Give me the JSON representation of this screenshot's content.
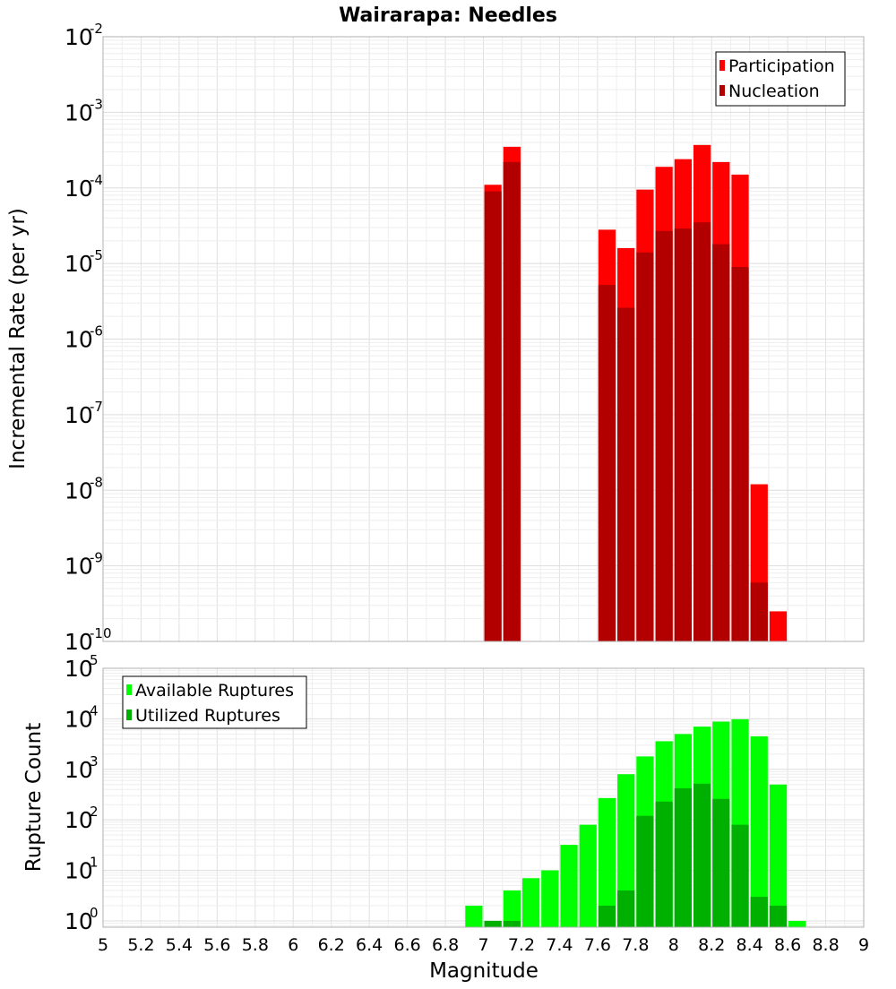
{
  "chart_data": {
    "title": "Wairarapa: Needles",
    "xlabel": "Magnitude",
    "xlim": [
      5,
      9
    ],
    "xticks": [
      "5",
      "5.2",
      "5.4",
      "5.6",
      "5.8",
      "6",
      "6.2",
      "6.4",
      "6.6",
      "6.8",
      "7",
      "7.2",
      "7.4",
      "7.6",
      "7.8",
      "8",
      "8.2",
      "8.4",
      "8.6",
      "8.8",
      "9"
    ],
    "bin_width": 0.1,
    "grid": true,
    "panels": [
      {
        "type": "bar",
        "ylabel": "Incremental Rate (per yr)",
        "yscale": "log",
        "ylim": [
          1e-10,
          0.01
        ],
        "legend_position": "top-right",
        "yticks": [
          {
            "base": "10",
            "exp": "-2"
          },
          {
            "base": "10",
            "exp": "-3"
          },
          {
            "base": "10",
            "exp": "-4"
          },
          {
            "base": "10",
            "exp": "-5"
          },
          {
            "base": "10",
            "exp": "-6"
          },
          {
            "base": "10",
            "exp": "-7"
          },
          {
            "base": "10",
            "exp": "-8"
          },
          {
            "base": "10",
            "exp": "-9"
          },
          {
            "base": "10",
            "exp": "-10"
          }
        ],
        "series": [
          {
            "name": "Participation",
            "color": "#ff0000",
            "x": [
              7.05,
              7.15,
              7.65,
              7.75,
              7.85,
              7.95,
              8.05,
              8.15,
              8.25,
              8.35,
              8.45,
              8.55
            ],
            "values": [
              0.00011,
              0.00035,
              2.8e-05,
              1.6e-05,
              9.5e-05,
              0.00019,
              0.00024,
              0.00037,
              0.00022,
              0.00015,
              1.2e-08,
              2.5e-10
            ]
          },
          {
            "name": "Nucleation",
            "color": "#b20000",
            "x": [
              7.05,
              7.15,
              7.65,
              7.75,
              7.85,
              7.95,
              8.05,
              8.15,
              8.25,
              8.35,
              8.45
            ],
            "values": [
              9e-05,
              0.00022,
              5.2e-06,
              2.6e-06,
              1.4e-05,
              2.7e-05,
              2.9e-05,
              3.5e-05,
              1.8e-05,
              9e-06,
              6e-10
            ]
          }
        ]
      },
      {
        "type": "bar",
        "ylabel": "Rupture Count",
        "yscale": "log",
        "ylim": [
          0.75,
          100000.0
        ],
        "legend_position": "top-left",
        "yticks": [
          {
            "base": "10",
            "exp": "5"
          },
          {
            "base": "10",
            "exp": "4"
          },
          {
            "base": "10",
            "exp": "3"
          },
          {
            "base": "10",
            "exp": "2"
          },
          {
            "base": "10",
            "exp": "1"
          },
          {
            "base": "10",
            "exp": "0"
          }
        ],
        "series": [
          {
            "name": "Available Ruptures",
            "color": "#00ff00",
            "x": [
              6.95,
              7.05,
              7.15,
              7.25,
              7.35,
              7.45,
              7.55,
              7.65,
              7.75,
              7.85,
              7.95,
              8.05,
              8.15,
              8.25,
              8.35,
              8.45,
              8.55,
              8.65
            ],
            "values": [
              2,
              1,
              4,
              7,
              10,
              32,
              80,
              270,
              800,
              1800,
              3600,
              5000,
              7000,
              8800,
              9800,
              4500,
              500,
              1
            ]
          },
          {
            "name": "Utilized Ruptures",
            "color": "#00b000",
            "x": [
              7.05,
              7.15,
              7.65,
              7.75,
              7.85,
              7.95,
              8.05,
              8.15,
              8.25,
              8.35,
              8.45,
              8.55
            ],
            "values": [
              1,
              1,
              2,
              4,
              120,
              230,
              420,
              520,
              260,
              80,
              3,
              2
            ]
          }
        ]
      }
    ]
  }
}
